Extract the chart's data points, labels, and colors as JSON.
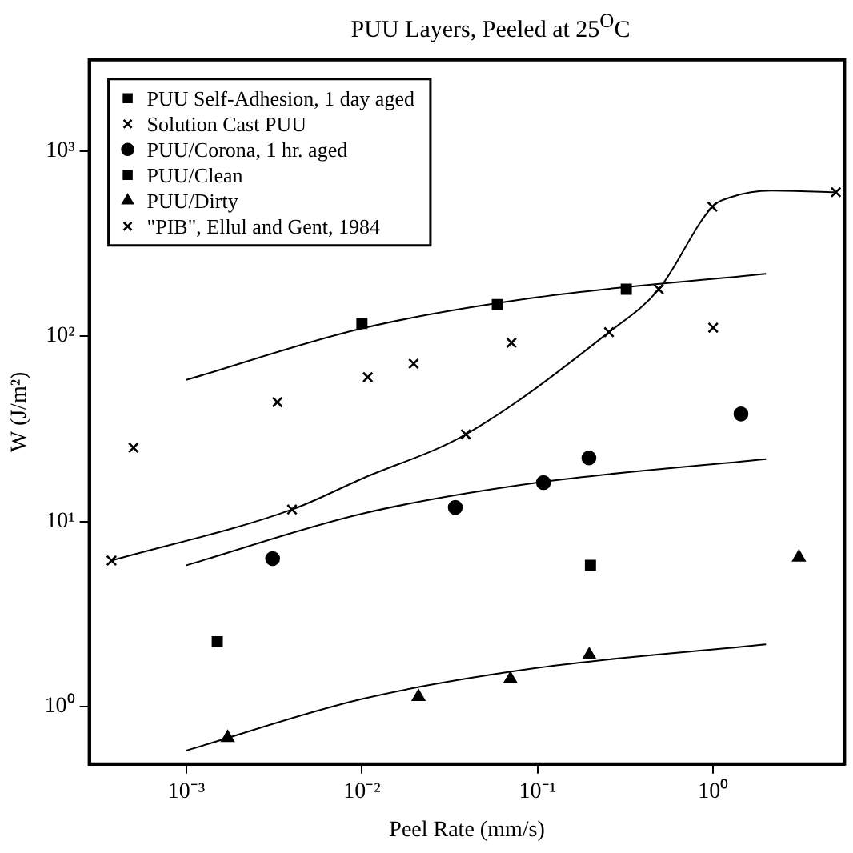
{
  "chart_data": {
    "type": "scatter",
    "title": "PUU Layers, Peeled at 25$^{O}$C",
    "xlabel": "Peel Rate (mm/s)",
    "ylabel": "W (J/m²)",
    "log": "xy",
    "grid": false,
    "legend": "top left",
    "xlim": [
      0.00028,
      5.6
    ],
    "ylim": [
      0.49,
      3100
    ],
    "xticks": [
      {
        "value": 0.001,
        "label": "10⁻³"
      },
      {
        "value": 0.01,
        "label": "10⁻²"
      },
      {
        "value": 0.1,
        "label": "10⁻¹"
      },
      {
        "value": 1,
        "label": "10⁰"
      }
    ],
    "yticks": [
      {
        "value": 1,
        "label": "10⁰"
      },
      {
        "value": 10,
        "label": "10¹"
      },
      {
        "value": 100,
        "label": "10²"
      },
      {
        "value": 1000,
        "label": "10³"
      }
    ],
    "series": [
      {
        "name": "PUU Self-Adhesion, 1 day aged",
        "marker": "square",
        "color": "#000000",
        "x": [
          0.01,
          0.059,
          0.32
        ],
        "values": [
          117,
          148,
          179
        ]
      },
      {
        "name": "Solution Cast PUU",
        "marker": "cross",
        "color": "#000000",
        "x": [
          0.0005,
          0.0033,
          0.0108,
          0.0197,
          0.071,
          0.255,
          1.0
        ],
        "values": [
          25,
          44,
          60,
          71,
          92,
          105,
          111
        ]
      },
      {
        "name": "PUU/Corona, 1 hr. aged",
        "marker": "circle",
        "color": "#000000",
        "x": [
          0.0031,
          0.034,
          0.108,
          0.196,
          1.44
        ],
        "values": [
          6.3,
          11.9,
          16.2,
          22,
          38
        ]
      },
      {
        "name": "PUU/Clean",
        "marker": "square",
        "color": "#000000",
        "x": [
          0.0015,
          0.2
        ],
        "values": [
          2.24,
          5.8
        ]
      },
      {
        "name": "PUU/Dirty",
        "marker": "triangle",
        "color": "#000000",
        "x": [
          0.00172,
          0.021,
          0.07,
          0.197,
          3.08
        ],
        "values": [
          0.68,
          1.13,
          1.41,
          1.9,
          6.4
        ]
      },
      {
        "name": "\"PIB\", Ellul and Gent, 1984",
        "marker": "cross",
        "color": "#000000",
        "x": [
          0.000375,
          0.004,
          0.039,
          0.49,
          0.99,
          5.0
        ],
        "values": [
          6.15,
          11.6,
          29.5,
          179,
          499,
          598
        ]
      },
      {
        "type": "line",
        "marker": "none",
        "color": "#000000",
        "x": [
          0.001,
          0.01,
          0.1,
          2
        ],
        "values": [
          58,
          110,
          162,
          217
        ]
      },
      {
        "type": "line",
        "marker": "none",
        "color": "#000000",
        "x": [
          0.001,
          0.01,
          0.1,
          2
        ],
        "values": [
          5.8,
          11,
          16.2,
          21.7
        ]
      },
      {
        "type": "line",
        "marker": "none",
        "color": "#000000",
        "x": [
          0.001,
          0.01,
          0.1,
          2
        ],
        "values": [
          0.58,
          1.1,
          1.62,
          2.17
        ]
      },
      {
        "type": "line",
        "marker": "none",
        "color": "#000000",
        "x": [
          0.000375,
          0.004,
          0.01,
          0.039,
          0.255,
          0.49,
          0.99,
          1.27,
          2.14,
          5.0
        ],
        "values": [
          6.15,
          11.6,
          17,
          29.5,
          105,
          179,
          499,
          563,
          610,
          598
        ]
      }
    ]
  }
}
